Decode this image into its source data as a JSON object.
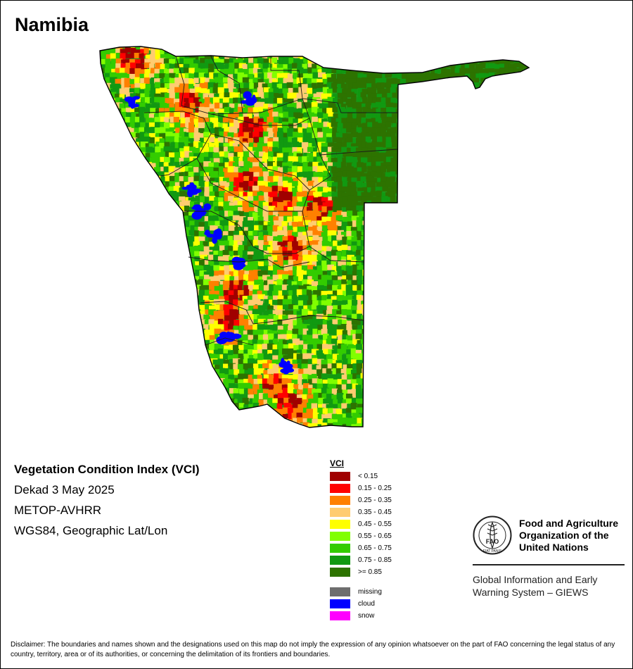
{
  "map": {
    "country": "Namibia",
    "colors": {
      "outline": "#000000",
      "district_lines": "#1a1a1a",
      "base_green": "#1f9a1f",
      "cloud": "#0000ff"
    }
  },
  "info": {
    "title": "Vegetation Condition Index (VCI)",
    "dekad": "Dekad 3 May 2025",
    "sensor": "METOP-AVHRR",
    "projection": "WGS84, Geographic Lat/Lon"
  },
  "legend": {
    "title": "VCI",
    "classes": [
      {
        "label": "< 0.15",
        "color": "#a00000"
      },
      {
        "label": "0.15 - 0.25",
        "color": "#ff0000"
      },
      {
        "label": "0.25 - 0.35",
        "color": "#ff8000"
      },
      {
        "label": "0.35 - 0.45",
        "color": "#ffcc70"
      },
      {
        "label": "0.45 - 0.55",
        "color": "#ffff00"
      },
      {
        "label": "0.55 - 0.65",
        "color": "#80ff00"
      },
      {
        "label": "0.65 - 0.75",
        "color": "#33cc00"
      },
      {
        "label": "0.75 - 0.85",
        "color": "#119911"
      },
      {
        "label": ">= 0.85",
        "color": "#2d7300"
      }
    ],
    "other": [
      {
        "label": "missing",
        "color": "#6e6e6e"
      },
      {
        "label": "cloud",
        "color": "#0000ff"
      },
      {
        "label": "snow",
        "color": "#ff00ff"
      }
    ]
  },
  "org": {
    "logo_text": "FAO",
    "logo_motto": "FIAT PANIS",
    "name_lines": [
      "Food and Agriculture",
      "Organization of the",
      "United Nations"
    ],
    "system_lines": [
      "Global Information and Early",
      "Warning System – GIEWS"
    ]
  },
  "disclaimer": "Disclaimer: The boundaries and names shown and the designations used on this map do not imply the expression of any opinion whatsoever on the part of FAO concerning the legal status of any country, territory, area or of its authorities, or concerning the delimitation of its frontiers and boundaries."
}
